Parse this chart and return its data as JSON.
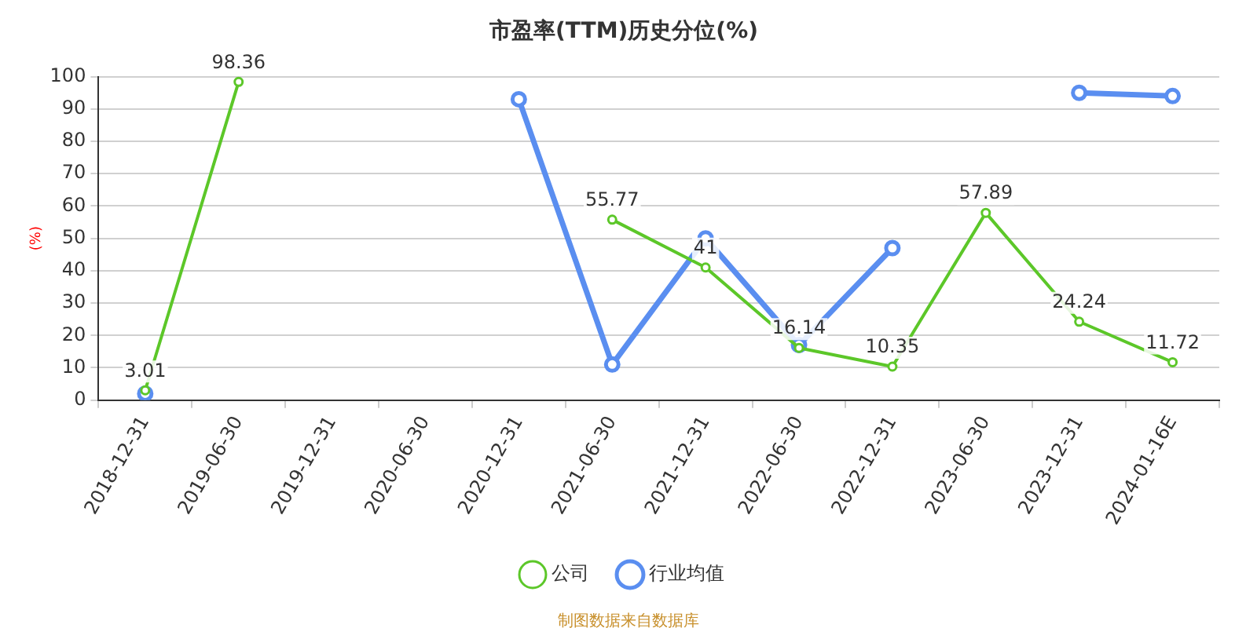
{
  "chart_data": {
    "type": "line",
    "title": "市盈率(TTM)历史分位(%)",
    "ylabel": "(%)",
    "categories": [
      "2018-12-31",
      "2019-06-30",
      "2019-12-31",
      "2020-06-30",
      "2020-12-31",
      "2021-06-30",
      "2021-12-31",
      "2022-06-30",
      "2022-12-31",
      "2023-06-30",
      "2023-12-31",
      "2024-01-16E"
    ],
    "series": [
      {
        "name": "公司",
        "color": "#5cc729",
        "values": [
          3.01,
          98.36,
          null,
          null,
          null,
          55.77,
          41,
          16.14,
          10.35,
          57.89,
          24.24,
          11.72
        ],
        "value_labels": [
          "3.01",
          "98.36",
          null,
          null,
          null,
          "55.77",
          "41",
          "16.14",
          "10.35",
          "57.89",
          "24.24",
          "11.72"
        ]
      },
      {
        "name": "行业均值",
        "color": "#5a8ef0",
        "values": [
          2,
          null,
          null,
          null,
          93,
          11,
          50,
          17,
          47,
          null,
          95,
          94
        ]
      }
    ],
    "ylim": [
      0,
      100
    ],
    "yticks": [
      0,
      10,
      20,
      30,
      40,
      50,
      60,
      70,
      80,
      90,
      100
    ],
    "grid": "y",
    "legend": "bottom",
    "marker": "circle",
    "line_style": "solid",
    "annotations": [
      "制图数据来自数据库"
    ]
  }
}
